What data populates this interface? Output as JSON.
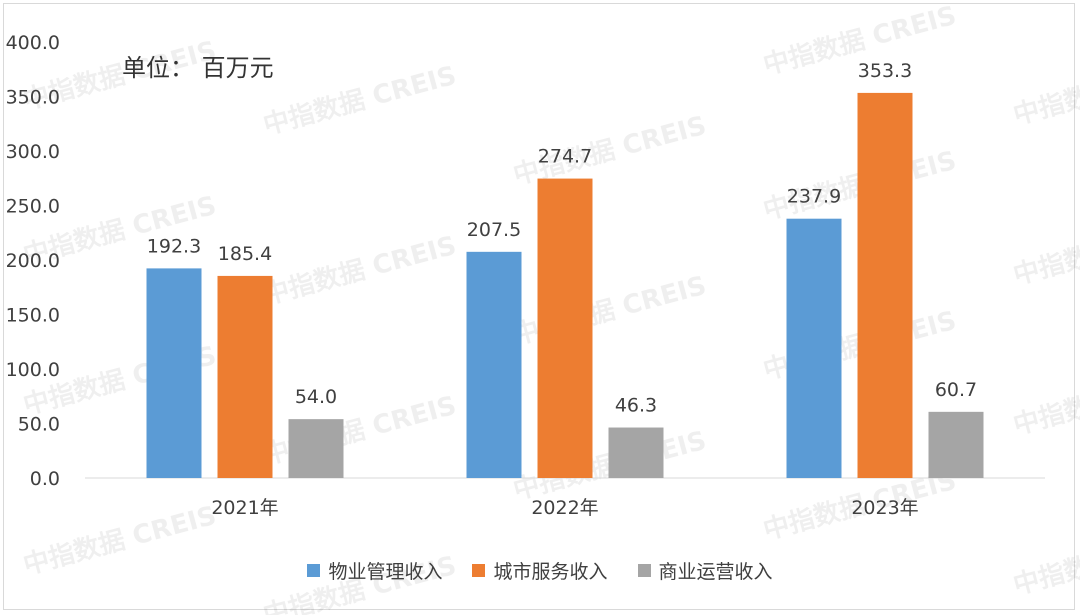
{
  "chart_data": {
    "type": "bar",
    "unit_label": "单位： 百万元",
    "categories": [
      "2021年",
      "2022年",
      "2023年"
    ],
    "series": [
      {
        "name": "物业管理收入",
        "color": "#5b9bd5",
        "values": [
          192.3,
          207.5,
          237.9
        ],
        "labels": [
          "192.3",
          "207.5",
          "237.9"
        ]
      },
      {
        "name": "城市服务收入",
        "color": "#ed7d31",
        "values": [
          185.4,
          274.7,
          353.3
        ],
        "labels": [
          "185.4",
          "274.7",
          "353.3"
        ]
      },
      {
        "name": "商业运营收入",
        "color": "#a5a5a5",
        "values": [
          54.0,
          46.3,
          60.7
        ],
        "labels": [
          "54.0",
          "46.3",
          "60.7"
        ]
      }
    ],
    "yticks": [
      "0.0",
      "50.0",
      "100.0",
      "150.0",
      "200.0",
      "250.0",
      "300.0",
      "350.0",
      "400.0"
    ],
    "ylim": [
      0,
      400
    ],
    "grid": false,
    "legend_position": "bottom",
    "watermark": "中指数据 CREIS"
  }
}
